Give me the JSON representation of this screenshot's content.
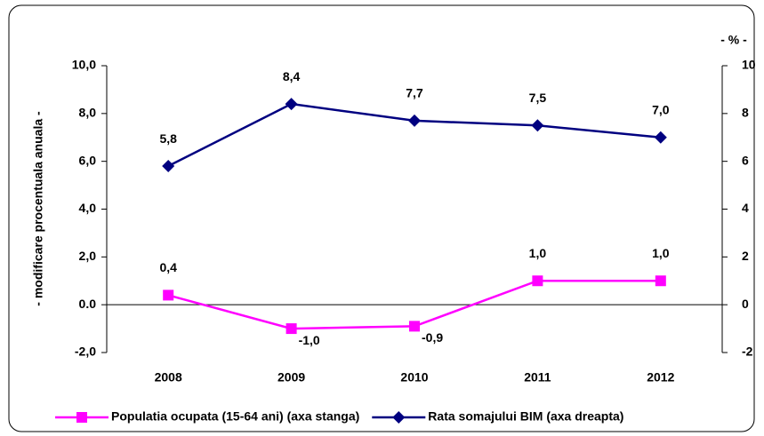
{
  "chart_data": {
    "type": "line",
    "y_label": "- modificare procentuala anuala -",
    "y2_label": "- % -",
    "categories": [
      "2008",
      "2009",
      "2010",
      "2011",
      "2012"
    ],
    "series": [
      {
        "name": "Populatia ocupata (15-64 ani) (axa stanga)",
        "color": "#ff00ff",
        "marker": "square",
        "values": [
          0.4,
          -1.0,
          -0.9,
          1.0,
          1.0
        ],
        "value_labels": [
          "0,4",
          "-1,0",
          "-0,9",
          "1,0",
          "1,0"
        ]
      },
      {
        "name": "Rata somajului BIM (axa dreapta)",
        "color": "#000080",
        "marker": "diamond",
        "axis": "y2",
        "values": [
          5.8,
          8.4,
          7.7,
          7.5,
          7.0
        ],
        "value_labels": [
          "5,8",
          "8,4",
          "7,7",
          "7,5",
          "7,0"
        ]
      }
    ],
    "ylim": [
      -2,
      10
    ],
    "yticks": [
      {
        "value": 10,
        "label": "10,0"
      },
      {
        "value": 8,
        "label": "8,0"
      },
      {
        "value": 6,
        "label": "6,0"
      },
      {
        "value": 4,
        "label": "4,0"
      },
      {
        "value": 2,
        "label": "2,0"
      },
      {
        "value": 0,
        "label": "0.0"
      },
      {
        "value": -2,
        "label": "-2,0"
      }
    ],
    "y2lim": [
      -2,
      10
    ],
    "y2ticks": [
      10,
      8,
      6,
      4,
      2,
      0,
      -2
    ],
    "grid": false
  }
}
